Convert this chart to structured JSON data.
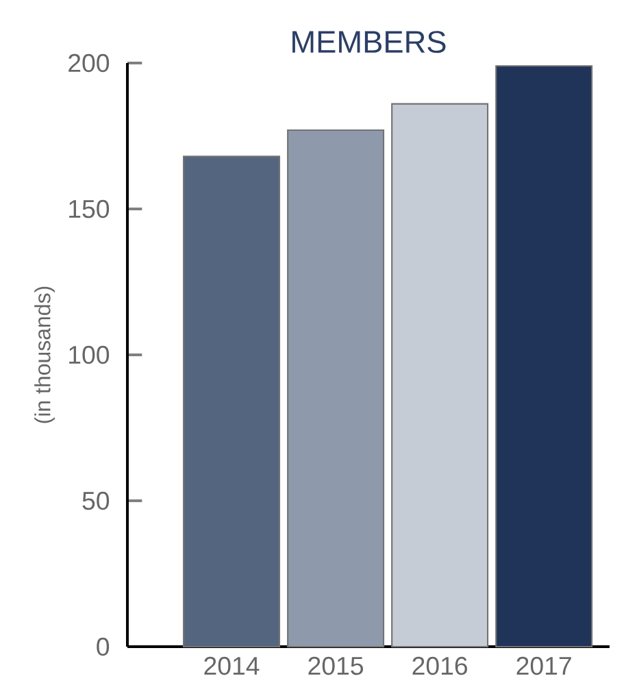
{
  "chart_data": {
    "type": "bar",
    "title": "MEMBERS",
    "ylabel": "(in thousands)",
    "categories": [
      "2014",
      "2015",
      "2016",
      "2017"
    ],
    "values": [
      168,
      177,
      186,
      199
    ],
    "colors": [
      "#546580",
      "#8e9aab",
      "#c6ccd5",
      "#203459"
    ],
    "ylim": [
      0,
      200
    ],
    "yticks": [
      0,
      50,
      100,
      150,
      200
    ],
    "grid": false
  }
}
